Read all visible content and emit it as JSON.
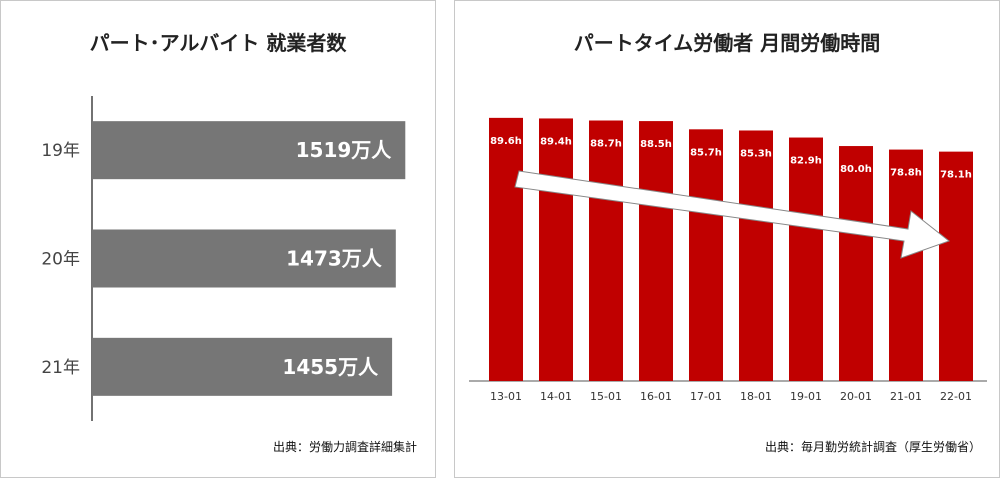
{
  "left": {
    "title": "パート･アルバイト 就業者数",
    "source": "出典：労働力調査詳細集計",
    "chart_data": {
      "type": "bar",
      "orientation": "horizontal",
      "title": "パート･アルバイト 就業者数",
      "categories": [
        "19年",
        "20年",
        "21年"
      ],
      "values": [
        1519,
        1473,
        1455
      ],
      "labels": [
        "1519万人",
        "1473万人",
        "1455万人"
      ],
      "xlim": [
        0,
        1600
      ],
      "grid": false,
      "bar_color": "#767676"
    }
  },
  "right": {
    "title": "パートタイム労働者 月間労働時間",
    "source": "出典：毎月勤労統計調査（厚生労働省）",
    "chart_data": {
      "type": "bar",
      "title": "パートタイム労働者 月間労働時間",
      "categories": [
        "13-01",
        "14-01",
        "15-01",
        "16-01",
        "17-01",
        "18-01",
        "19-01",
        "20-01",
        "21-01",
        "22-01"
      ],
      "values": [
        89.6,
        89.4,
        88.7,
        88.5,
        85.7,
        85.3,
        82.9,
        80.0,
        78.8,
        78.1
      ],
      "labels": [
        "89.6h",
        "89.4h",
        "88.7h",
        "88.5h",
        "85.7h",
        "85.3h",
        "82.9h",
        "80.0h",
        "78.8h",
        "78.1h"
      ],
      "ylim": [
        0,
        95
      ],
      "grid": false,
      "bar_color": "#c00000",
      "annotation": "downward trend arrow"
    }
  }
}
